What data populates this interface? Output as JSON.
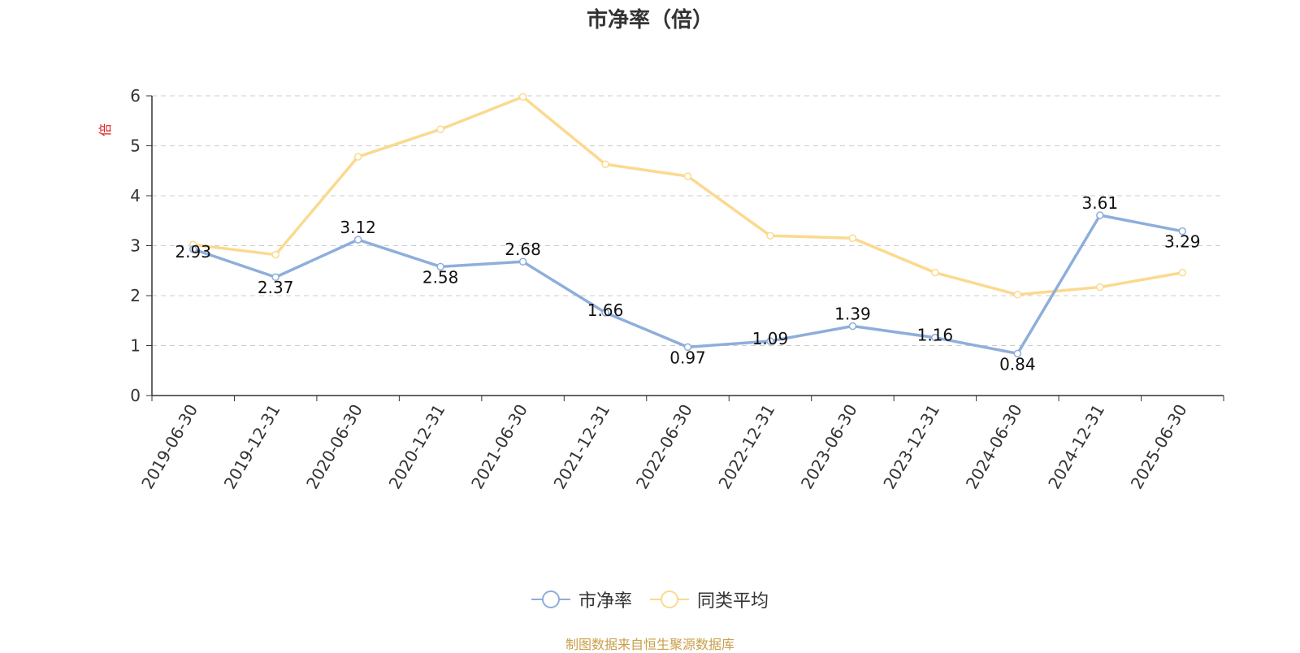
{
  "chart_data": {
    "type": "line",
    "title": "市净率（倍）",
    "ylabel": "倍",
    "xlabel": "",
    "ylim": [
      0,
      6
    ],
    "yticks": [
      0,
      1,
      2,
      3,
      4,
      5,
      6
    ],
    "grid": true,
    "legend_position": "bottom",
    "categories": [
      "2019-06-30",
      "2019-12-31",
      "2020-06-30",
      "2020-12-31",
      "2021-06-30",
      "2021-12-31",
      "2022-06-30",
      "2022-12-31",
      "2023-06-30",
      "2023-12-31",
      "2024-06-30",
      "2024-12-31",
      "2025-06-30"
    ],
    "series": [
      {
        "name": "市净率",
        "color": "#8eaedb",
        "show_labels": true,
        "values": [
          2.93,
          2.37,
          3.12,
          2.58,
          2.68,
          1.66,
          0.97,
          1.09,
          1.39,
          1.16,
          0.84,
          3.61,
          3.29
        ]
      },
      {
        "name": "同类平均",
        "color": "#fbd98f",
        "show_labels": false,
        "values": [
          3.02,
          2.82,
          4.78,
          5.33,
          5.98,
          4.63,
          4.39,
          3.2,
          3.15,
          2.46,
          2.02,
          2.17,
          2.46
        ]
      }
    ]
  },
  "source": "制图数据来自恒生聚源数据库",
  "colors": {
    "ylabel": "#e02020",
    "axis": "#333333",
    "grid": "#cccccc",
    "source": "#c8a04a"
  }
}
